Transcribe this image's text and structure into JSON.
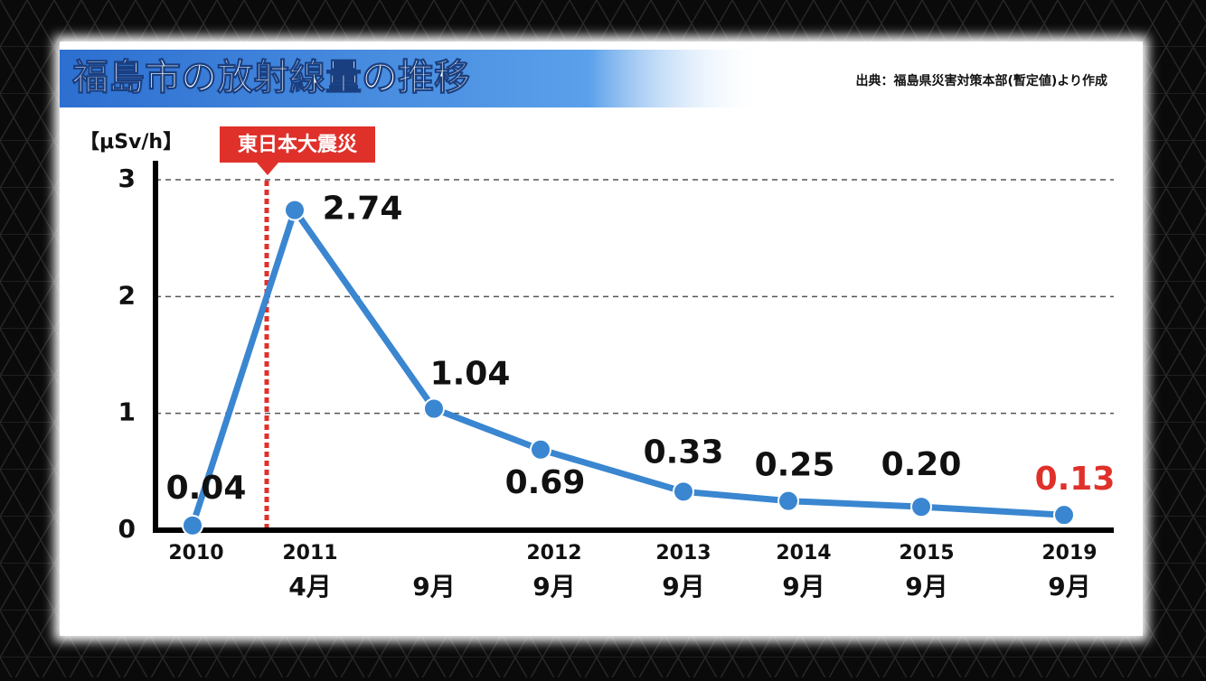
{
  "chart_data": {
    "type": "line",
    "title": "福島市の放射線量の推移",
    "source": "出典：福島県災害対策本部(暫定値)より作成",
    "y_label": "【μSv/h】",
    "annotation": "東日本大震災",
    "categories": [
      [
        "2010"
      ],
      [
        "2011",
        "4月"
      ],
      [
        "9月"
      ],
      [
        "2012",
        "9月"
      ],
      [
        "2013",
        "9月"
      ],
      [
        "2014",
        "9月"
      ],
      [
        "2015",
        "9月"
      ],
      [
        "2019",
        "9月"
      ]
    ],
    "values": [
      0.04,
      2.74,
      1.04,
      0.69,
      0.33,
      0.25,
      0.2,
      0.13
    ],
    "value_labels": [
      "0.04",
      "2.74",
      "1.04",
      "0.69",
      "0.33",
      "0.25",
      "0.20",
      "0.13"
    ],
    "color": "#3a86d0",
    "highlight_color": "#e0302a",
    "ylim": [
      0,
      3
    ],
    "yticks": [
      0,
      1,
      2,
      3
    ],
    "grid": true
  }
}
